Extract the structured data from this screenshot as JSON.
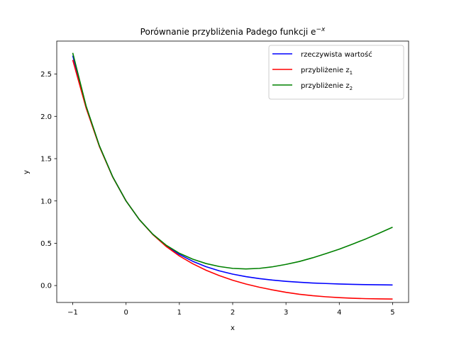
{
  "chart_data": {
    "type": "line",
    "title": "Porównanie przybliżenia Padego funkcji e",
    "title_sup": "−x",
    "xlabel": "x",
    "ylabel": "y",
    "xlim": [
      -1.3,
      5.3
    ],
    "ylim": [
      -0.2,
      2.89
    ],
    "xticks": [
      -1,
      0,
      1,
      2,
      3,
      4,
      5
    ],
    "xtick_labels": [
      "−1",
      "0",
      "1",
      "2",
      "3",
      "4",
      "5"
    ],
    "yticks": [
      0.0,
      0.5,
      1.0,
      1.5,
      2.0,
      2.5
    ],
    "ytick_labels": [
      "0.0",
      "0.5",
      "1.0",
      "1.5",
      "2.0",
      "2.5"
    ],
    "grid": false,
    "legend_position": "top-right",
    "x": [
      -1.0,
      -0.75,
      -0.5,
      -0.25,
      0.0,
      0.25,
      0.5,
      0.75,
      1.0,
      1.25,
      1.5,
      1.75,
      2.0,
      2.25,
      2.5,
      2.75,
      3.0,
      3.25,
      3.5,
      3.75,
      4.0,
      4.25,
      4.5,
      4.75,
      5.0
    ],
    "series": [
      {
        "name": "rzeczywista wartość",
        "name_sub": "",
        "color": "#0000ff",
        "values": [
          2.718,
          2.117,
          1.649,
          1.284,
          1.0,
          0.779,
          0.607,
          0.472,
          0.368,
          0.287,
          0.223,
          0.174,
          0.135,
          0.105,
          0.082,
          0.064,
          0.05,
          0.039,
          0.03,
          0.024,
          0.018,
          0.014,
          0.011,
          0.009,
          0.007
        ]
      },
      {
        "name": "przybliżenie z",
        "name_sub": "1",
        "color": "#ff0000",
        "values": [
          2.667,
          2.1,
          1.643,
          1.282,
          1.0,
          0.779,
          0.604,
          0.463,
          0.35,
          0.258,
          0.181,
          0.117,
          0.063,
          0.018,
          -0.02,
          -0.052,
          -0.08,
          -0.103,
          -0.12,
          -0.133,
          -0.143,
          -0.15,
          -0.155,
          -0.158,
          -0.16
        ]
      },
      {
        "name": "przybliżenie z",
        "name_sub": "2",
        "color": "#008000",
        "values": [
          2.75,
          2.124,
          1.652,
          1.285,
          1.0,
          0.779,
          0.608,
          0.478,
          0.382,
          0.312,
          0.26,
          0.225,
          0.203,
          0.196,
          0.203,
          0.222,
          0.25,
          0.284,
          0.328,
          0.378,
          0.43,
          0.49,
          0.552,
          0.62,
          0.69
        ]
      }
    ]
  }
}
